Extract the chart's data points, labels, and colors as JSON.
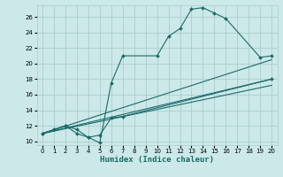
{
  "xlabel": "Humidex (Indice chaleur)",
  "xlim": [
    -0.5,
    20.5
  ],
  "ylim": [
    9.5,
    27.5
  ],
  "xticks": [
    0,
    1,
    2,
    3,
    4,
    5,
    6,
    7,
    8,
    9,
    10,
    11,
    12,
    13,
    14,
    15,
    16,
    17,
    18,
    19,
    20
  ],
  "yticks": [
    10,
    12,
    14,
    16,
    18,
    20,
    22,
    24,
    26
  ],
  "bg_color": "#cce8e8",
  "grid_color": "#aacece",
  "line_color": "#1a6b6b",
  "lines": [
    {
      "x": [
        0,
        1,
        2,
        3,
        4,
        5,
        6,
        7,
        10,
        11,
        12,
        13,
        14,
        15,
        16,
        19,
        20
      ],
      "y": [
        11,
        11.5,
        12,
        11,
        10.5,
        9.8,
        17.5,
        21,
        21,
        23.5,
        24.5,
        27,
        27.2,
        26.5,
        25.8,
        20.8,
        21
      ],
      "markers": true
    },
    {
      "x": [
        0,
        1,
        2,
        3,
        4,
        5,
        6,
        7,
        20
      ],
      "y": [
        11,
        11.5,
        12,
        11.5,
        10.5,
        10.8,
        13,
        13.2,
        18
      ],
      "markers": true
    },
    {
      "x": [
        0,
        20
      ],
      "y": [
        11,
        20.5
      ],
      "markers": false
    },
    {
      "x": [
        0,
        20
      ],
      "y": [
        11,
        18
      ],
      "markers": false
    },
    {
      "x": [
        0,
        20
      ],
      "y": [
        11,
        17.2
      ],
      "markers": false
    }
  ]
}
